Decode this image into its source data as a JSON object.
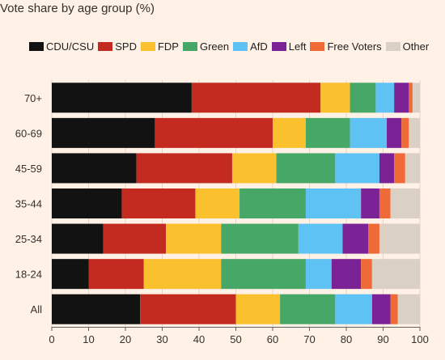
{
  "chart_data": {
    "type": "bar",
    "orientation": "horizontal",
    "stacked": true,
    "title": "Vote share by age group (%)",
    "categories": [
      "70+",
      "60-69",
      "45-59",
      "35-44",
      "25-34",
      "18-24",
      "All"
    ],
    "xlim": [
      0,
      100
    ],
    "xticks": [
      0,
      10,
      20,
      30,
      40,
      50,
      60,
      70,
      80,
      90,
      100
    ],
    "legend_position": "top",
    "grid": "x",
    "background": "#fff1e5",
    "series": [
      {
        "name": "CDU/CSU",
        "color": "#121212",
        "values": [
          38,
          28,
          23,
          19,
          14,
          10,
          24
        ]
      },
      {
        "name": "SPD",
        "color": "#c32a20",
        "values": [
          35,
          32,
          26,
          20,
          17,
          15,
          26
        ]
      },
      {
        "name": "FDP",
        "color": "#fbc02d",
        "values": [
          8,
          9,
          12,
          12,
          15,
          21,
          12
        ]
      },
      {
        "name": "Green",
        "color": "#47a766",
        "values": [
          7,
          12,
          16,
          18,
          21,
          23,
          15
        ]
      },
      {
        "name": "AfD",
        "color": "#5ec2f5",
        "values": [
          5,
          10,
          12,
          15,
          12,
          7,
          10
        ]
      },
      {
        "name": "Left",
        "color": "#7b2396",
        "values": [
          4,
          4,
          4,
          5,
          7,
          8,
          5
        ]
      },
      {
        "name": "Free Voters",
        "color": "#f06a37",
        "values": [
          1,
          2,
          3,
          3,
          3,
          3,
          2
        ]
      },
      {
        "name": "Other",
        "color": "#dbd0c4",
        "values": [
          2,
          3,
          4,
          8,
          11,
          13,
          6
        ]
      }
    ]
  }
}
